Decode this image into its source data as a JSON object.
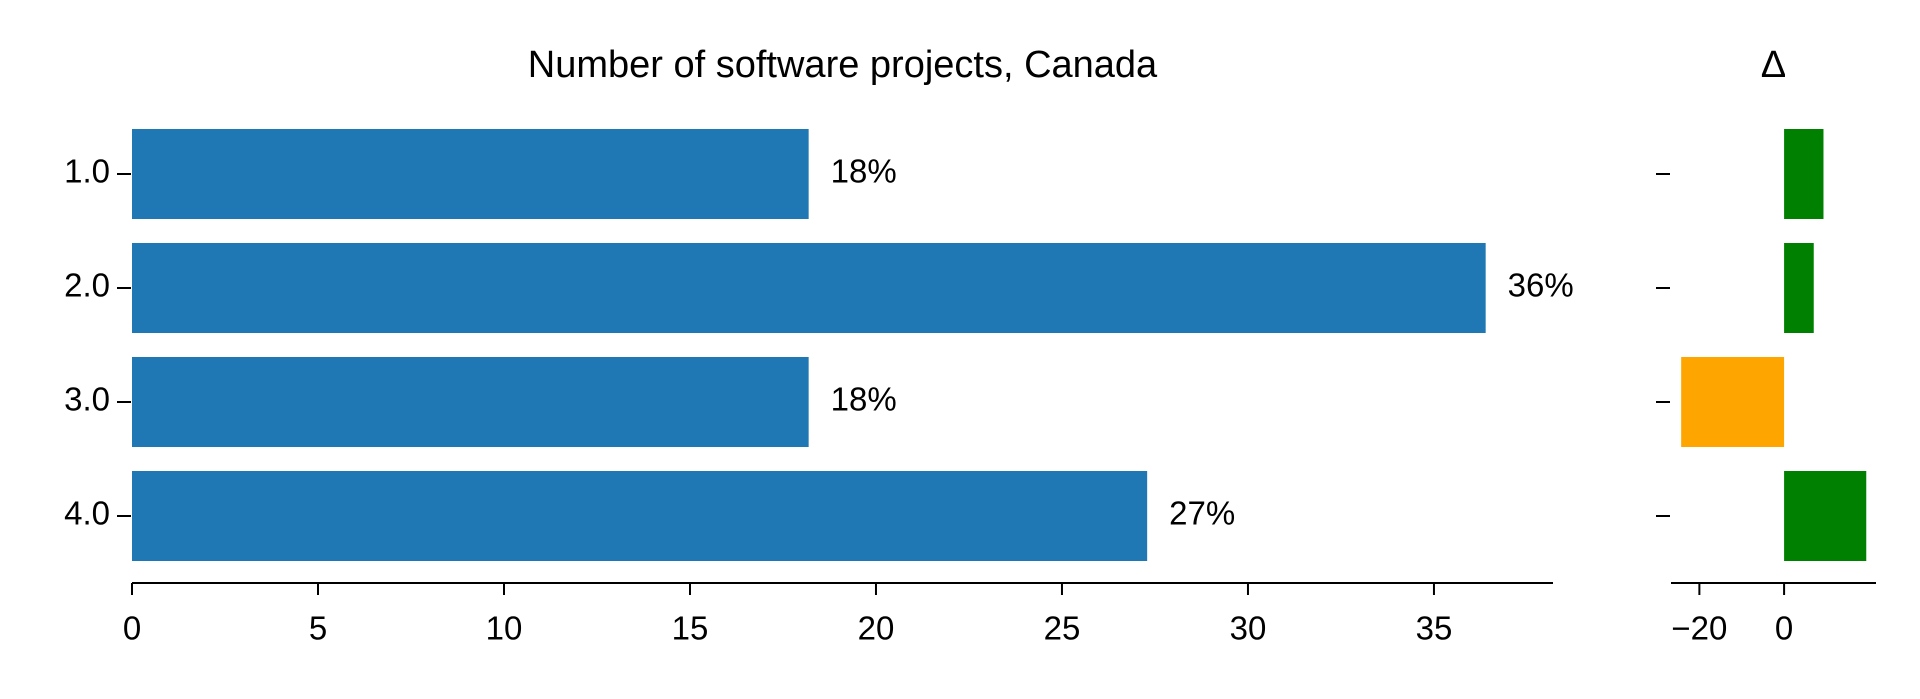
{
  "chart_data": [
    {
      "type": "hbar",
      "title": "Number of software projects, Canada",
      "categories": [
        "1.0",
        "2.0",
        "3.0",
        "4.0"
      ],
      "values": [
        18.19,
        36.39,
        18.19,
        27.29
      ],
      "value_labels": [
        "18%",
        "36%",
        "18%",
        "27%"
      ],
      "color": "#1f77b4",
      "xlim": [
        0,
        38.2
      ],
      "xticks": [
        0,
        5,
        10,
        15,
        20,
        25,
        30,
        35
      ]
    },
    {
      "type": "hbar",
      "title": "Δ",
      "categories": [
        null,
        null,
        null,
        null
      ],
      "values": [
        9.3,
        7.0,
        -24.3,
        19.4
      ],
      "colors": [
        "#008000",
        "#008000",
        "#ffa500",
        "#008000"
      ],
      "xlim": [
        -26.7,
        21.7
      ],
      "xticks": [
        {
          "value": -20,
          "label": "−20"
        },
        0
      ]
    }
  ]
}
